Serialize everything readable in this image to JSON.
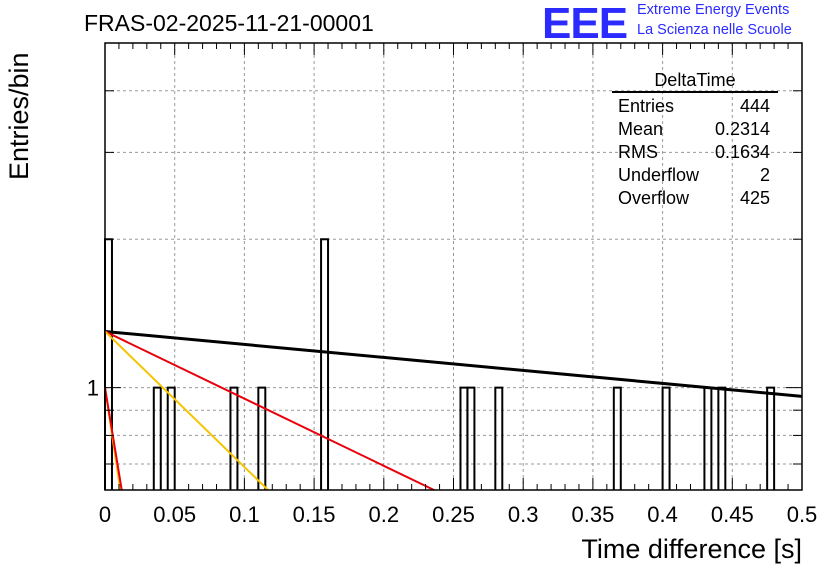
{
  "header": {
    "run_title": "FRAS-02-2025-11-21-00001",
    "logo": "EEE",
    "logo_line1": "Extreme Energy Events",
    "logo_line2": "La Scienza nelle Scuole"
  },
  "stats": {
    "title": "DeltaTime",
    "rows": [
      {
        "label": "Entries",
        "value": "444"
      },
      {
        "label": "Mean",
        "value": "0.2314"
      },
      {
        "label": "RMS",
        "value": "0.1634"
      },
      {
        "label": "Underflow",
        "value": "2"
      },
      {
        "label": "Overflow",
        "value": "425"
      }
    ]
  },
  "colors": {
    "hist": "#000000",
    "fit_black": "#000000",
    "fit_red": "#e8000b",
    "fit_yellow": "#f5c400",
    "grid": "#9a9a9a"
  },
  "chart_data": {
    "type": "histogram",
    "title": "FRAS-02-2025-11-21-00001",
    "xlabel": "Time difference [s]",
    "ylabel": "Entries/bin",
    "xlim": [
      0,
      0.5
    ],
    "ylim_log": [
      0.62,
      5
    ],
    "log_y": true,
    "grid": true,
    "bin_width": 0.005,
    "xticks": [
      0,
      0.05,
      0.1,
      0.15,
      0.2,
      0.25,
      0.3,
      0.35,
      0.4,
      0.45,
      0.5
    ],
    "xtick_labels": [
      "0",
      "0.05",
      "0.1",
      "0.15",
      "0.2",
      "0.25",
      "0.3",
      "0.35",
      "0.4",
      "0.45",
      "0.5"
    ],
    "ytick_labels": [
      {
        "value": 1,
        "label": "1"
      }
    ],
    "bins": [
      {
        "x": 0.0,
        "count": 2
      },
      {
        "x": 0.035,
        "count": 1
      },
      {
        "x": 0.045,
        "count": 1
      },
      {
        "x": 0.09,
        "count": 1
      },
      {
        "x": 0.11,
        "count": 1
      },
      {
        "x": 0.155,
        "count": 2
      },
      {
        "x": 0.255,
        "count": 1
      },
      {
        "x": 0.26,
        "count": 1
      },
      {
        "x": 0.28,
        "count": 1
      },
      {
        "x": 0.365,
        "count": 1
      },
      {
        "x": 0.4,
        "count": 1
      },
      {
        "x": 0.43,
        "count": 1
      },
      {
        "x": 0.44,
        "count": 1
      },
      {
        "x": 0.475,
        "count": 1
      }
    ],
    "fits": [
      {
        "name": "fit-black",
        "color": "#000000",
        "x0": 0.0,
        "y0": 1.3,
        "x1": 0.5,
        "y1": 0.96
      },
      {
        "name": "fit-red-1",
        "color": "#e8000b",
        "x0": 0.0,
        "y0": 1.3,
        "x1": 0.236,
        "y1": 0.62
      },
      {
        "name": "fit-yellow-1",
        "color": "#f5c400",
        "x0": 0.0,
        "y0": 1.3,
        "x1": 0.117,
        "y1": 0.62
      },
      {
        "name": "fit-yellow-2",
        "color": "#f5c400",
        "x0": 0.0,
        "y0": 1.0,
        "x1": 0.011,
        "y1": 0.62
      },
      {
        "name": "fit-red-2",
        "color": "#e8000b",
        "x0": 0.0,
        "y0": 1.0,
        "x1": 0.012,
        "y1": 0.62
      }
    ]
  }
}
